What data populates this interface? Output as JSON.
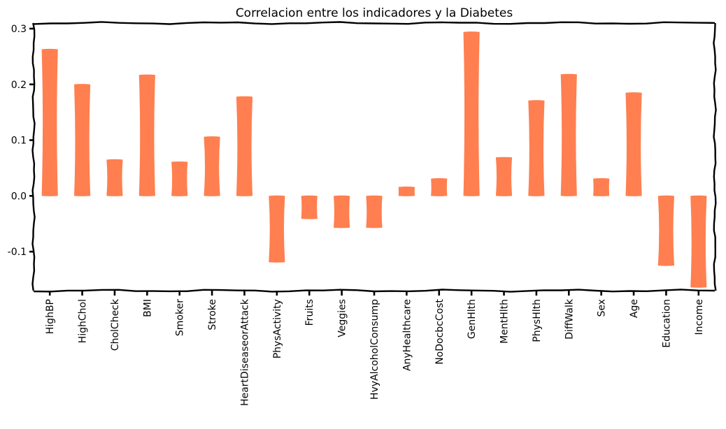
{
  "chart_data": {
    "type": "bar",
    "title": "Correlacion entre los indicadores y la Diabetes",
    "xlabel": "",
    "ylabel": "",
    "ylim": [
      -0.17,
      0.31
    ],
    "yticks": [
      -0.1,
      0.0,
      0.1,
      0.2,
      0.3
    ],
    "ytick_labels": [
      "-0.1",
      "0.0",
      "0.1",
      "0.2",
      "0.3"
    ],
    "grid": false,
    "style": "xkcd",
    "bar_color": "#ff7f50",
    "categories": [
      "HighBP",
      "HighChol",
      "CholCheck",
      "BMI",
      "Smoker",
      "Stroke",
      "HeartDiseaseorAttack",
      "PhysActivity",
      "Fruits",
      "Veggies",
      "HvyAlcoholConsump",
      "AnyHealthcare",
      "NoDocbcCost",
      "GenHlth",
      "MentHlth",
      "PhysHlth",
      "DiffWalk",
      "Sex",
      "Age",
      "Education",
      "Income"
    ],
    "values": [
      0.263,
      0.2,
      0.065,
      0.217,
      0.061,
      0.106,
      0.178,
      -0.119,
      -0.041,
      -0.057,
      -0.057,
      0.016,
      0.031,
      0.294,
      0.069,
      0.171,
      0.218,
      0.031,
      0.185,
      -0.125,
      -0.164
    ]
  }
}
